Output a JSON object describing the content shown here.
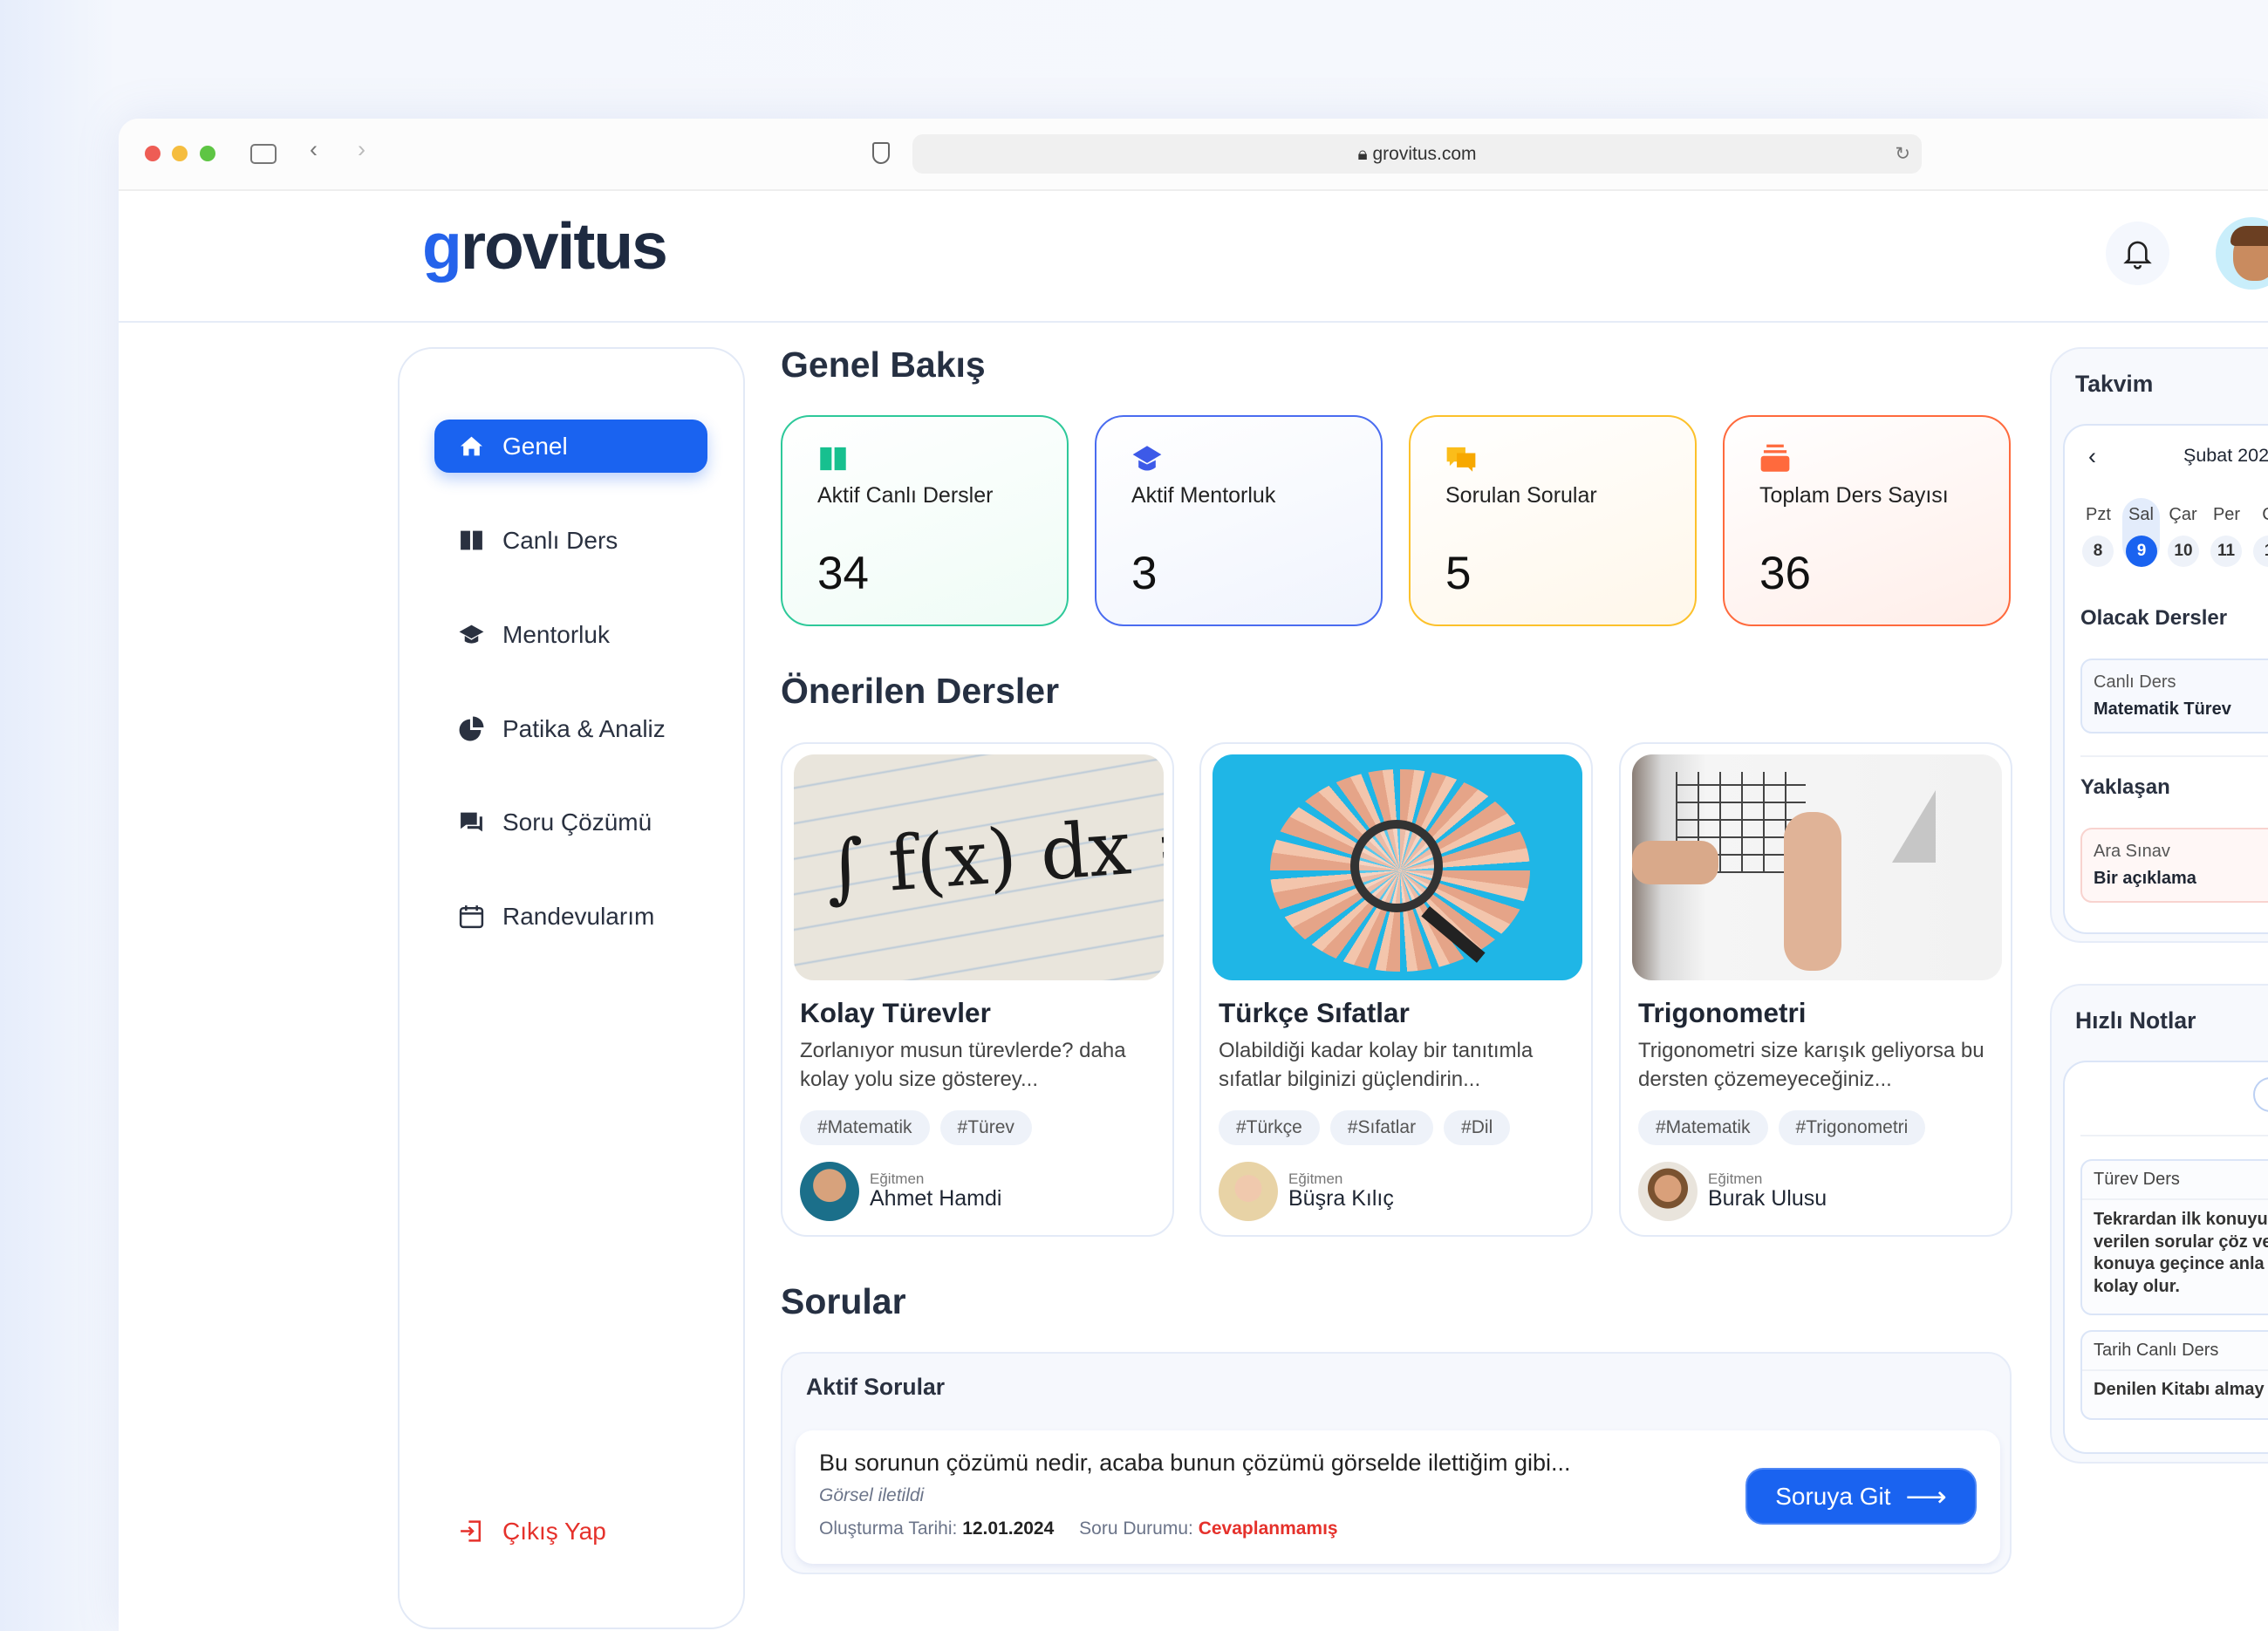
{
  "browser": {
    "url": "grovitus.com"
  },
  "brand": {
    "logo_text": "grovitus",
    "accent": "#1a63f0"
  },
  "sidebar": {
    "items": [
      {
        "label": "Genel",
        "icon": "home-icon",
        "active": true
      },
      {
        "label": "Canlı Ders",
        "icon": "book-icon"
      },
      {
        "label": "Mentorluk",
        "icon": "graduation-cap-icon"
      },
      {
        "label": "Patika & Analiz",
        "icon": "pie-chart-icon"
      },
      {
        "label": "Soru Çözümü",
        "icon": "chat-icon"
      },
      {
        "label": "Randevularım",
        "icon": "calendar-icon"
      }
    ],
    "logout": "Çıkış Yap"
  },
  "overview": {
    "title": "Genel Bakış",
    "stats": [
      {
        "label": "Aktif Canlı Dersler",
        "value": "34",
        "color": "#2ec99a",
        "icon": "book-icon"
      },
      {
        "label": "Aktif Mentorluk",
        "value": "3",
        "color": "#4a6cf0",
        "icon": "graduation-cap-icon"
      },
      {
        "label": "Sorulan Sorular",
        "value": "5",
        "color": "#fcc12b",
        "icon": "chat-icon"
      },
      {
        "label": "Toplam Ders Sayısı",
        "value": "36",
        "color": "#ff6a3d",
        "icon": "stack-icon"
      }
    ]
  },
  "courses": {
    "title": "Önerilen Dersler",
    "instructor_label": "Eğitmen",
    "items": [
      {
        "title": "Kolay Türevler",
        "desc": "Zorlanıyor musun türevlerde? daha kolay yolu size gösterey...",
        "tags": [
          "#Matematik",
          "#Türev"
        ],
        "instructor": "Ahmet Hamdi",
        "image_text": "∫ f(x) dx ="
      },
      {
        "title": "Türkçe Sıfatlar",
        "desc": "Olabildiği kadar kolay bir tanıtımla sıfatlar bilginizi güçlendirin...",
        "tags": [
          "#Türkçe",
          "#Sıfatlar",
          "#Dil"
        ],
        "instructor": "Büşra Kılıç"
      },
      {
        "title": "Trigonometri",
        "desc": "Trigonometri size karışık geliyorsa bu dersten çözemeyeceğiniz...",
        "tags": [
          "#Matematik",
          "#Trigonometri"
        ],
        "instructor": "Burak Ulusu"
      }
    ]
  },
  "questions": {
    "title": "Sorular",
    "panel_title": "Aktif Sorular",
    "item": {
      "text": "Bu sorunun çözümü nedir, acaba bunun çözümü görselde ilettiğim gibi...",
      "attachment": "Görsel iletildi",
      "date_label": "Oluşturma Tarihi:",
      "date": "12.01.2024",
      "status_label": "Soru Durumu:",
      "status": "Cevaplanmamış",
      "status_color": "#e5312b",
      "button": "Soruya Git"
    }
  },
  "calendar": {
    "title": "Takvim",
    "month": "Şubat 202",
    "days": [
      "Pzt",
      "Sal",
      "Çar",
      "Per",
      "C"
    ],
    "dates": [
      "8",
      "9",
      "10",
      "11",
      "1"
    ],
    "selected": "9",
    "upcoming_lessons_title": "Olacak Dersler",
    "lesson": {
      "type": "Canlı Ders",
      "name": "Matematik Türev"
    },
    "upcoming_title": "Yaklaşan",
    "exam": {
      "type": "Ara Sınav",
      "desc": "Bir açıklama"
    }
  },
  "notes": {
    "title": "Hızlı Notlar",
    "items": [
      {
        "title": "Türev Ders",
        "lines": [
          "Tekrardan ilk konuyu",
          "verilen sorular çöz ve",
          "konuya geçince anla",
          "kolay olur."
        ]
      },
      {
        "title": "Tarih Canlı Ders",
        "lines": [
          "Denilen Kitabı almay"
        ]
      }
    ]
  }
}
